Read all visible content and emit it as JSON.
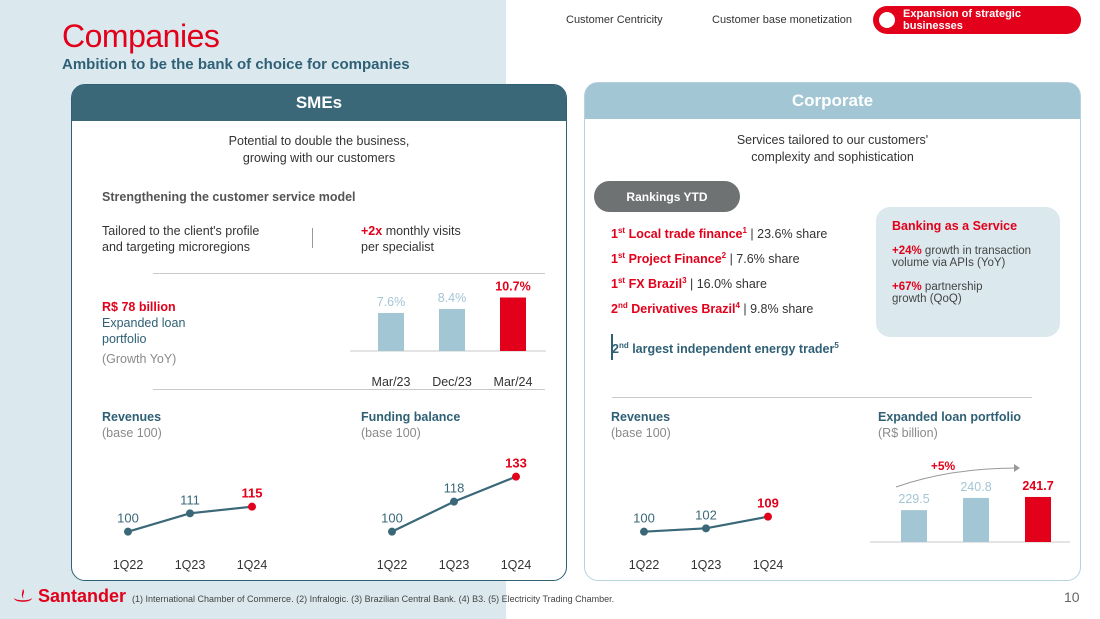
{
  "header": {
    "title": "Companies",
    "subtitle": "Ambition to be the bank of choice for companies",
    "tabs": [
      "Customer Centricity",
      "Customer base monetization",
      "Expansion of strategic businesses"
    ]
  },
  "smes": {
    "title": "SMEs",
    "intro_1": "Potential to double the business,",
    "intro_2": "growing with our customers",
    "service_title": "Strengthening the customer service model",
    "profile_1": "Tailored to the client's profile",
    "profile_2": "and targeting microregions",
    "visits_bold": "+2x",
    "visits_1": " monthly visits",
    "visits_2": "per specialist",
    "loan_value": "R$ 78 billion",
    "loan_desc_1": "Expanded loan",
    "loan_desc_2": "portfolio",
    "loan_note": "(Growth YoY)",
    "revenues_title": "Revenues",
    "revenues_sub": "(base 100)",
    "funding_title": "Funding balance",
    "funding_sub": "(base 100)"
  },
  "corporate": {
    "title": "Corporate",
    "intro_1": "Services tailored to our customers'",
    "intro_2": "complexity and sophistication",
    "rankings_label": "Rankings YTD",
    "rankings": [
      {
        "pos": "1",
        "sup": "st",
        "name": "Local trade finance",
        "note": "1",
        "share": " | 23.6% share"
      },
      {
        "pos": "1",
        "sup": "st",
        "name": "Project Finance",
        "note": "2",
        "share": " | 7.6% share"
      },
      {
        "pos": "1",
        "sup": "st",
        "name": "FX Brazil",
        "note": "3",
        "share": " | 16.0% share"
      },
      {
        "pos": "2",
        "sup": "nd",
        "name": "Derivatives Brazil",
        "note": "4",
        "share": " | 9.8% share"
      }
    ],
    "energy": {
      "pos": "2",
      "sup": "nd",
      "text": " largest independent energy trader",
      "note": "5"
    },
    "baas": {
      "title": "Banking as a Service",
      "item1_bold": "+24%",
      "item1_a": " growth in transaction",
      "item1_b": "volume via APIs (YoY)",
      "item2_bold": "+67%",
      "item2_a": " partnership",
      "item2_b": "growth (QoQ)"
    },
    "revenues_title": "Revenues",
    "revenues_sub": "(base 100)",
    "loan_title": "Expanded loan portfolio",
    "loan_sub": "(R$ billion)",
    "growth_label": "+5%"
  },
  "chart_data": [
    {
      "type": "bar",
      "title": "SME expanded loan portfolio growth YoY",
      "categories": [
        "Mar/23",
        "Dec/23",
        "Mar/24"
      ],
      "values": [
        7.6,
        8.4,
        10.7
      ],
      "labels": [
        "7.6%",
        "8.4%",
        "10.7%"
      ],
      "ylim": [
        0,
        12
      ]
    },
    {
      "type": "line",
      "title": "SMEs Revenues (base 100)",
      "categories": [
        "1Q22",
        "1Q23",
        "1Q24"
      ],
      "values": [
        100,
        111,
        115
      ],
      "ylim": [
        95,
        140
      ]
    },
    {
      "type": "line",
      "title": "SMEs Funding balance (base 100)",
      "categories": [
        "1Q22",
        "1Q23",
        "1Q24"
      ],
      "values": [
        100,
        118,
        133
      ],
      "ylim": [
        95,
        140
      ]
    },
    {
      "type": "line",
      "title": "Corporate Revenues (base 100)",
      "categories": [
        "1Q22",
        "1Q23",
        "1Q24"
      ],
      "values": [
        100,
        102,
        109
      ],
      "ylim": [
        95,
        140
      ]
    },
    {
      "type": "bar",
      "title": "Expanded loan portfolio (R$ billion)",
      "categories": [
        "Mar/23",
        "Dec/23",
        "Mar/24"
      ],
      "values": [
        229.5,
        240.8,
        241.7
      ],
      "labels": [
        "229.5",
        "240.8",
        "241.7"
      ],
      "ylim": [
        200,
        250
      ]
    }
  ],
  "colors": {
    "red": "#e2001a",
    "dark_teal": "#2f6075",
    "light_blue": "#a2c6d4",
    "line": "#3a6878"
  },
  "footer": {
    "footnote": "(1) International Chamber of Commerce. (2) Infralogic. (3) Brazilian Central Bank. (4) B3. (5) Electricity Trading Chamber.",
    "page": "10",
    "brand": "Santander"
  }
}
